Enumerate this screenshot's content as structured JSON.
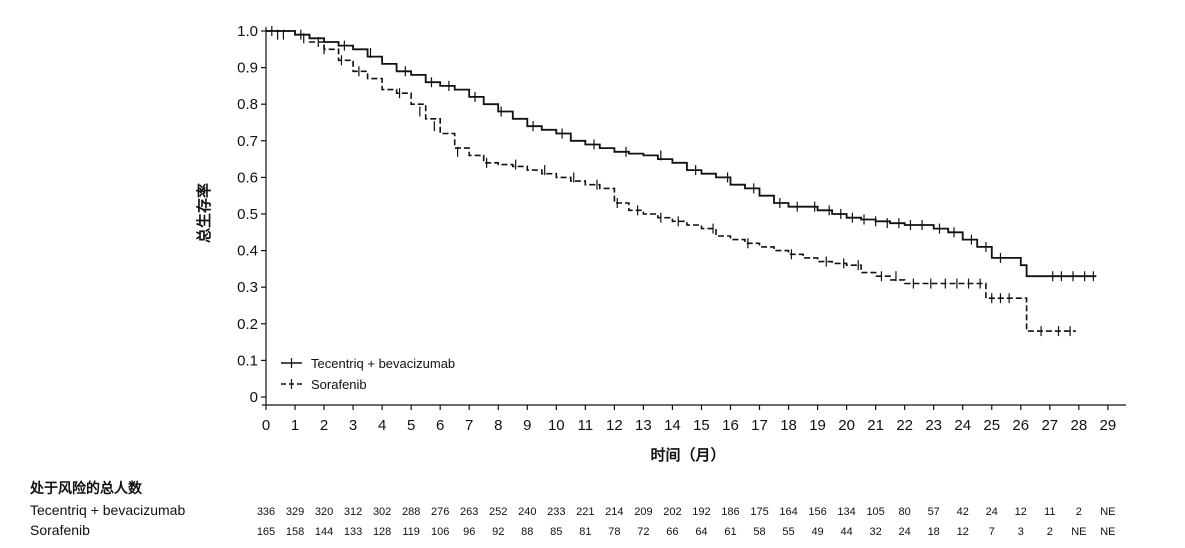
{
  "chart_data": {
    "type": "line",
    "subtype": "kaplan-meier",
    "title": "",
    "xlabel": "时间（月）",
    "ylabel": "总生存率",
    "xlim": [
      0,
      29
    ],
    "ylim": [
      0,
      1.0
    ],
    "x_ticks": [
      0,
      1,
      2,
      3,
      4,
      5,
      6,
      7,
      8,
      9,
      10,
      11,
      12,
      13,
      14,
      15,
      16,
      17,
      18,
      19,
      20,
      21,
      22,
      23,
      24,
      25,
      26,
      27,
      28,
      29
    ],
    "y_ticks": [
      0,
      0.1,
      0.2,
      0.3,
      0.4,
      0.5,
      0.6,
      0.7,
      0.8,
      0.9,
      1.0
    ],
    "y_tick_labels": [
      "0",
      "0.1",
      "0.2",
      "0.3",
      "0.4",
      "0.5",
      "0.6",
      "0.7",
      "0.8",
      "0.9",
      "1.0"
    ],
    "grid": false,
    "legend_position": "bottom-left",
    "series": [
      {
        "name": "Tecentriq + bevacizumab",
        "line_style": "solid",
        "color": "#111111",
        "x": [
          0,
          1.0,
          1.5,
          2.0,
          2.5,
          3.0,
          3.5,
          4.0,
          4.5,
          5.0,
          5.5,
          6.0,
          6.5,
          7.0,
          7.5,
          8.0,
          8.5,
          9.0,
          9.5,
          10.0,
          10.5,
          11.0,
          11.5,
          12.0,
          12.5,
          13.0,
          13.5,
          14.0,
          14.5,
          15.0,
          15.5,
          16.0,
          16.5,
          17.0,
          17.5,
          18.0,
          18.5,
          19.0,
          19.5,
          20.0,
          20.5,
          21.0,
          21.5,
          22.0,
          22.5,
          23.0,
          23.5,
          24.0,
          24.5,
          25.0,
          25.5,
          26.0,
          26.2,
          27.0,
          28.0,
          28.6
        ],
        "y": [
          1.0,
          0.99,
          0.98,
          0.97,
          0.96,
          0.95,
          0.93,
          0.91,
          0.89,
          0.88,
          0.86,
          0.85,
          0.84,
          0.82,
          0.8,
          0.78,
          0.76,
          0.74,
          0.73,
          0.72,
          0.7,
          0.69,
          0.68,
          0.67,
          0.665,
          0.66,
          0.65,
          0.64,
          0.62,
          0.61,
          0.6,
          0.58,
          0.57,
          0.55,
          0.53,
          0.52,
          0.52,
          0.51,
          0.5,
          0.49,
          0.485,
          0.48,
          0.475,
          0.47,
          0.47,
          0.46,
          0.45,
          0.43,
          0.41,
          0.38,
          0.38,
          0.36,
          0.33,
          0.33,
          0.33,
          0.33
        ],
        "censor_x": [
          0.2,
          0.6,
          1.2,
          1.8,
          2.7,
          3.6,
          4.8,
          5.7,
          6.3,
          7.2,
          8.1,
          9.2,
          10.2,
          11.3,
          12.4,
          13.6,
          14.8,
          15.9,
          16.8,
          17.7,
          18.3,
          18.9,
          19.4,
          19.8,
          20.2,
          20.6,
          21.0,
          21.4,
          21.8,
          22.2,
          22.6,
          23.2,
          23.7,
          24.3,
          24.8,
          25.3,
          27.1,
          27.4,
          27.8,
          28.2,
          28.5
        ],
        "censor_y": [
          1.0,
          0.99,
          0.99,
          0.97,
          0.96,
          0.94,
          0.89,
          0.86,
          0.85,
          0.82,
          0.78,
          0.74,
          0.72,
          0.69,
          0.67,
          0.66,
          0.62,
          0.6,
          0.57,
          0.53,
          0.52,
          0.52,
          0.51,
          0.5,
          0.49,
          0.485,
          0.48,
          0.475,
          0.475,
          0.47,
          0.47,
          0.46,
          0.45,
          0.43,
          0.41,
          0.38,
          0.33,
          0.33,
          0.33,
          0.33,
          0.33
        ]
      },
      {
        "name": "Sorafenib",
        "line_style": "dashed",
        "color": "#111111",
        "x": [
          0,
          1.0,
          1.5,
          2.0,
          2.5,
          3.0,
          3.5,
          4.0,
          4.5,
          5.0,
          5.5,
          6.0,
          6.5,
          7.0,
          7.5,
          8.0,
          8.5,
          9.0,
          9.5,
          10.0,
          10.5,
          11.0,
          11.5,
          12.0,
          12.5,
          13.0,
          13.5,
          14.0,
          14.5,
          15.0,
          15.5,
          16.0,
          16.5,
          17.0,
          17.5,
          18.0,
          18.5,
          19.0,
          19.5,
          20.0,
          20.5,
          21.0,
          21.5,
          22.0,
          23.0,
          24.0,
          24.8,
          25.5,
          26.0,
          26.2,
          27.0,
          27.9
        ],
        "y": [
          1.0,
          0.99,
          0.97,
          0.95,
          0.92,
          0.89,
          0.87,
          0.84,
          0.83,
          0.8,
          0.76,
          0.72,
          0.68,
          0.66,
          0.64,
          0.635,
          0.63,
          0.62,
          0.61,
          0.6,
          0.59,
          0.58,
          0.57,
          0.53,
          0.51,
          0.5,
          0.49,
          0.48,
          0.47,
          0.46,
          0.44,
          0.43,
          0.42,
          0.41,
          0.4,
          0.39,
          0.38,
          0.37,
          0.365,
          0.36,
          0.34,
          0.33,
          0.32,
          0.31,
          0.31,
          0.31,
          0.27,
          0.27,
          0.27,
          0.18,
          0.18,
          0.18
        ],
        "censor_x": [
          0.4,
          1.3,
          2.0,
          2.6,
          3.2,
          4.6,
          5.3,
          5.8,
          6.6,
          7.6,
          8.6,
          9.6,
          10.6,
          11.4,
          12.1,
          12.8,
          13.6,
          14.2,
          15.4,
          16.6,
          18.1,
          19.3,
          19.9,
          20.4,
          21.2,
          21.7,
          22.3,
          22.9,
          23.4,
          23.8,
          24.2,
          24.6,
          25.0,
          25.3,
          25.6,
          26.7,
          27.3,
          27.7
        ],
        "censor_y": [
          0.99,
          0.98,
          0.95,
          0.92,
          0.89,
          0.83,
          0.78,
          0.74,
          0.67,
          0.64,
          0.635,
          0.62,
          0.6,
          0.58,
          0.53,
          0.51,
          0.49,
          0.48,
          0.46,
          0.42,
          0.39,
          0.37,
          0.365,
          0.36,
          0.33,
          0.33,
          0.31,
          0.31,
          0.31,
          0.31,
          0.31,
          0.31,
          0.27,
          0.27,
          0.27,
          0.18,
          0.18,
          0.18
        ]
      }
    ]
  },
  "risk_table": {
    "title": "处于风险的总人数",
    "rows": [
      {
        "name": "Tecentriq + bevacizumab",
        "values": [
          "336",
          "329",
          "320",
          "312",
          "302",
          "288",
          "276",
          "263",
          "252",
          "240",
          "233",
          "221",
          "214",
          "209",
          "202",
          "192",
          "186",
          "175",
          "164",
          "156",
          "134",
          "105",
          "80",
          "57",
          "42",
          "24",
          "12",
          "11",
          "2",
          "NE"
        ]
      },
      {
        "name": "Sorafenib",
        "values": [
          "165",
          "158",
          "144",
          "133",
          "128",
          "119",
          "106",
          "96",
          "92",
          "88",
          "85",
          "81",
          "78",
          "72",
          "66",
          "64",
          "61",
          "58",
          "55",
          "49",
          "44",
          "32",
          "24",
          "18",
          "12",
          "7",
          "3",
          "2",
          "NE",
          "NE"
        ]
      }
    ]
  }
}
